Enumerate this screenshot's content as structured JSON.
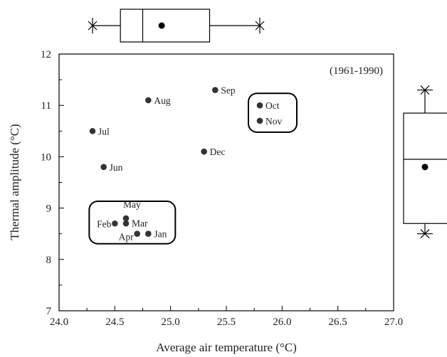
{
  "chart_data": {
    "type": "scatter",
    "xlabel": "Average air temperature (°C)",
    "ylabel": "Thermal amplitude (°C)",
    "xlim": [
      24.0,
      27.0
    ],
    "ylim": [
      7,
      12
    ],
    "x_ticks": [
      "24.0",
      "24.5",
      "25.0",
      "25.5",
      "26.0",
      "26.5",
      "27.0"
    ],
    "y_ticks": [
      "7",
      "8",
      "9",
      "10",
      "11",
      "12"
    ],
    "annotation": "(1961-1990)",
    "grid": false,
    "points": [
      {
        "label": "Jan",
        "x": 24.8,
        "y": 8.5
      },
      {
        "label": "Feb",
        "x": 24.5,
        "y": 8.7
      },
      {
        "label": "Mar",
        "x": 24.6,
        "y": 8.7
      },
      {
        "label": "Apr",
        "x": 24.7,
        "y": 8.5
      },
      {
        "label": "May",
        "x": 24.6,
        "y": 8.8
      },
      {
        "label": "Jun",
        "x": 24.4,
        "y": 9.8
      },
      {
        "label": "Jul",
        "x": 24.3,
        "y": 10.5
      },
      {
        "label": "Aug",
        "x": 24.8,
        "y": 11.1
      },
      {
        "label": "Sep",
        "x": 25.4,
        "y": 11.3
      },
      {
        "label": "Oct",
        "x": 25.8,
        "y": 11.0
      },
      {
        "label": "Nov",
        "x": 25.8,
        "y": 10.7
      },
      {
        "label": "Dec",
        "x": 25.3,
        "y": 10.1
      }
    ],
    "groups": [
      {
        "members": [
          "Jan",
          "Feb",
          "Mar",
          "Apr",
          "May"
        ]
      },
      {
        "members": [
          "Oct",
          "Nov"
        ]
      }
    ],
    "boxplot_x": {
      "min": 24.3,
      "q1": 24.55,
      "median": 24.75,
      "q3": 25.35,
      "max": 25.8,
      "mean": 24.92
    },
    "boxplot_y": {
      "min": 8.5,
      "q1": 8.7,
      "median": 9.95,
      "q3": 10.85,
      "max": 11.3,
      "mean": 9.8
    }
  }
}
